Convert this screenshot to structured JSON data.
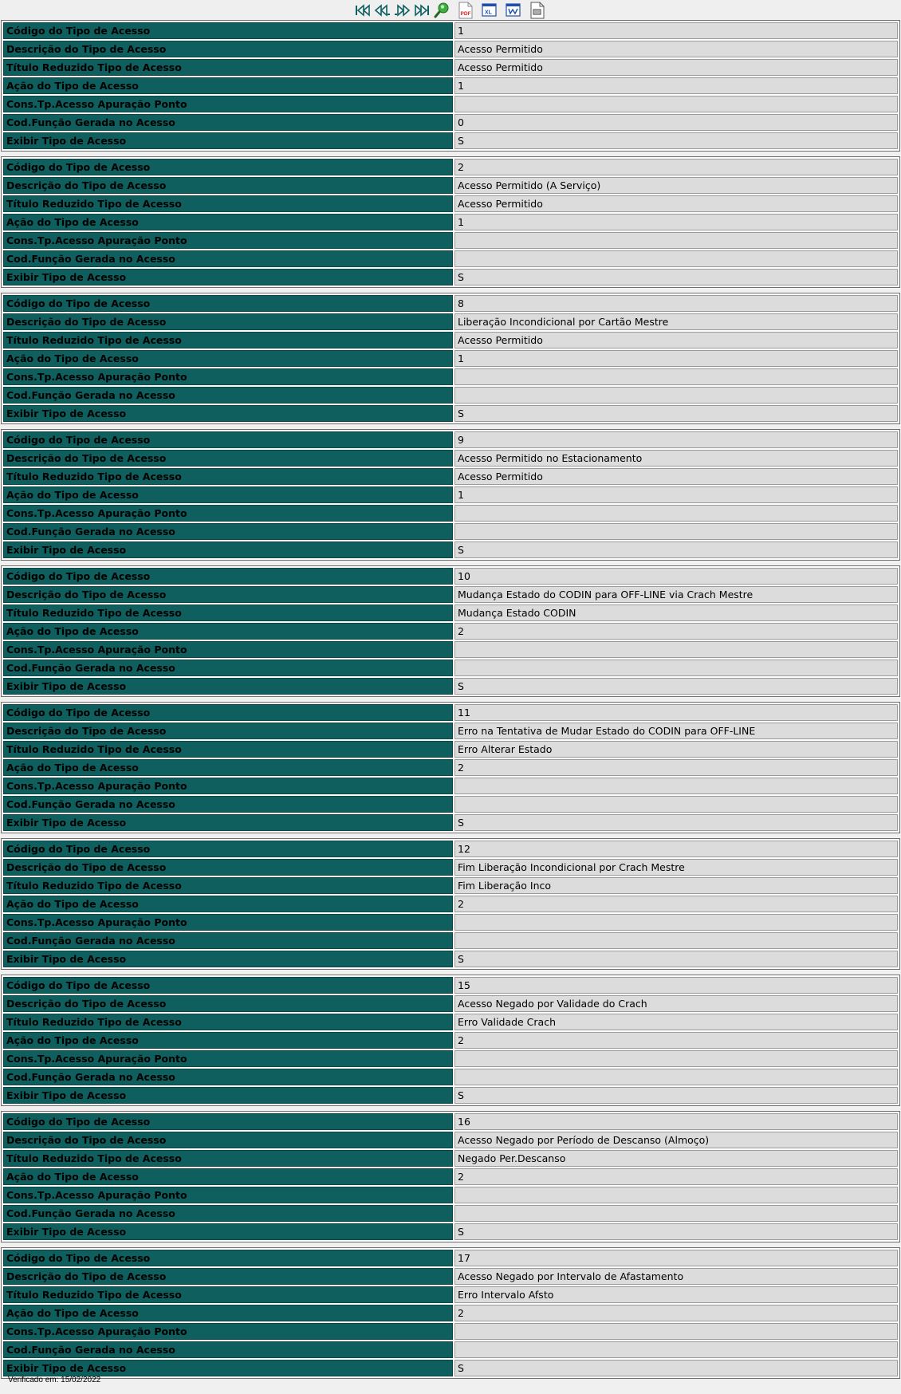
{
  "toolbar": {
    "nav_buttons": [
      {
        "name": "first-record-icon",
        "glyph": "|<<"
      },
      {
        "name": "previous-record-icon",
        "glyph": "<<"
      },
      {
        "name": "next-record-icon",
        "glyph": ">>"
      },
      {
        "name": "last-record-icon",
        "glyph": ">>|"
      }
    ],
    "tools": [
      {
        "name": "search-icon"
      },
      {
        "name": "pdf-export-icon",
        "text": "PDF"
      },
      {
        "name": "excel-export-icon",
        "text": "XL"
      },
      {
        "name": "word-export-icon",
        "text": "W"
      },
      {
        "name": "print-icon"
      }
    ],
    "colors": {
      "nav": "#0f6060",
      "search": "#2a9a2a",
      "pdf": "#d42020",
      "excel": "#1f4fa8"
    }
  },
  "labels": {
    "codigo": "Código do Tipo de Acesso",
    "descricao": "Descrição do Tipo de Acesso",
    "titulo": "Título Reduzido Tipo de Acesso",
    "acao": "Ação do Tipo de Acesso",
    "cons": "Cons.Tp.Acesso Apuração Ponto",
    "cod_funcao": "Cod.Função Gerada no Acesso",
    "exibir": "Exibir Tipo de Acesso"
  },
  "records": [
    {
      "codigo": "1",
      "descricao": "Acesso Permitido",
      "titulo": "Acesso Permitido",
      "acao": "1",
      "cons": "",
      "cod_funcao": "0",
      "exibir": "S"
    },
    {
      "codigo": "2",
      "descricao": "Acesso Permitido (A Serviço)",
      "titulo": "Acesso Permitido",
      "acao": "1",
      "cons": "",
      "cod_funcao": "",
      "exibir": "S"
    },
    {
      "codigo": "8",
      "descricao": "Liberação Incondicional por Cartão Mestre",
      "titulo": "Acesso Permitido",
      "acao": "1",
      "cons": "",
      "cod_funcao": "",
      "exibir": "S"
    },
    {
      "codigo": "9",
      "descricao": "Acesso Permitido no Estacionamento",
      "titulo": "Acesso Permitido",
      "acao": "1",
      "cons": "",
      "cod_funcao": "",
      "exibir": "S"
    },
    {
      "codigo": "10",
      "descricao": "Mudança Estado do CODIN para OFF-LINE via Crach  Mestre",
      "titulo": "Mudança Estado CODIN",
      "acao": "2",
      "cons": "",
      "cod_funcao": "",
      "exibir": "S"
    },
    {
      "codigo": "11",
      "descricao": "Erro na Tentativa de Mudar Estado do CODIN para OFF-LINE",
      "titulo": "Erro Alterar Estado",
      "acao": "2",
      "cons": "",
      "cod_funcao": "",
      "exibir": "S"
    },
    {
      "codigo": "12",
      "descricao": "Fim Liberação Incondicional por Crach  Mestre",
      "titulo": "Fim Liberação Inco",
      "acao": "2",
      "cons": "",
      "cod_funcao": "",
      "exibir": "S"
    },
    {
      "codigo": "15",
      "descricao": "Acesso Negado por Validade do Crach",
      "titulo": "Erro Validade Crach",
      "acao": "2",
      "cons": "",
      "cod_funcao": "",
      "exibir": "S"
    },
    {
      "codigo": "16",
      "descricao": "Acesso Negado por Período de Descanso (Almoço)",
      "titulo": "Negado Per.Descanso",
      "acao": "2",
      "cons": "",
      "cod_funcao": "",
      "exibir": "S"
    },
    {
      "codigo": "17",
      "descricao": "Acesso Negado por Intervalo de Afastamento",
      "titulo": "Erro Intervalo Afsto",
      "acao": "2",
      "cons": "",
      "cod_funcao": "",
      "exibir": "S"
    }
  ],
  "footer": {
    "verified": "Verificado em: 15/02/2022"
  }
}
